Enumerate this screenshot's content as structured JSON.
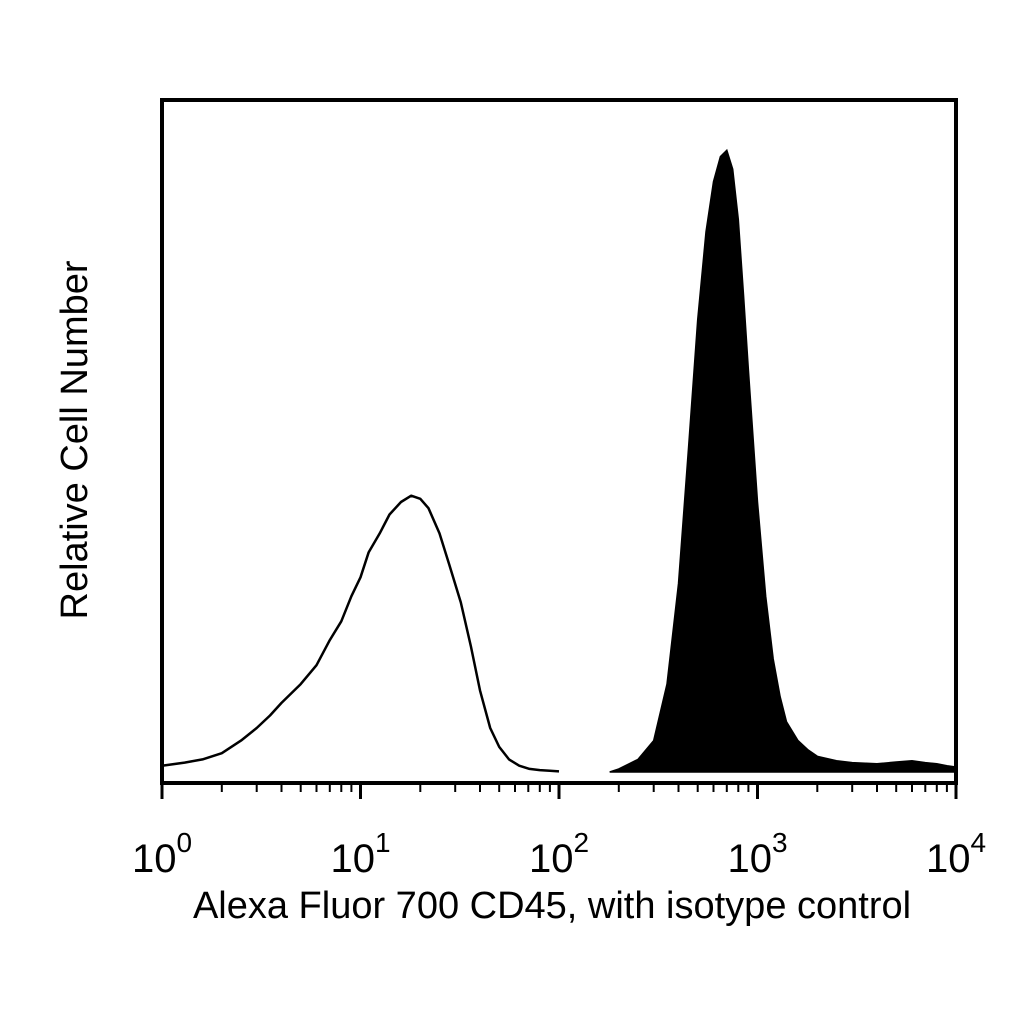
{
  "chart_data": {
    "type": "area",
    "title": "",
    "xlabel": "Alexa Fluor 700 CD45, with isotype control",
    "ylabel": "Relative Cell Number",
    "xscale": "log",
    "xlim": [
      1,
      10000
    ],
    "ylim": [
      0,
      100
    ],
    "grid": false,
    "legend": "none",
    "x_ticks": [
      {
        "value": 1,
        "base": "10",
        "exp": "0"
      },
      {
        "value": 10,
        "base": "10",
        "exp": "1"
      },
      {
        "value": 100,
        "base": "10",
        "exp": "2"
      },
      {
        "value": 1000,
        "base": "10",
        "exp": "3"
      },
      {
        "value": 10000,
        "base": "10",
        "exp": "4"
      }
    ],
    "series": [
      {
        "style": "outline",
        "color": "#000000",
        "x": [
          1.0,
          1.3,
          1.6,
          2.0,
          2.5,
          3.0,
          3.5,
          4.0,
          5.0,
          6.0,
          7.0,
          8.0,
          9.0,
          10.0,
          11.0,
          12.5,
          14.0,
          16.0,
          18.0,
          20.0,
          22.0,
          25.0,
          28.0,
          32.0,
          36.0,
          40.0,
          45.0,
          50.0,
          56.0,
          63.0,
          71.0,
          80.0,
          90.0,
          100.0
        ],
        "y": [
          1,
          1.5,
          2,
          3,
          5,
          7,
          9,
          11,
          14,
          17,
          21,
          24,
          28,
          31,
          35,
          38,
          41,
          43,
          44,
          43.5,
          42,
          38,
          33,
          27,
          20,
          13,
          7,
          4,
          2,
          1,
          0.5,
          0.3,
          0.2,
          0.1
        ]
      },
      {
        "style": "filled",
        "color": "#000000",
        "x": [
          180,
          200,
          250,
          300,
          350,
          400,
          450,
          500,
          550,
          600,
          650,
          700,
          750,
          800,
          850,
          900,
          1000,
          1100,
          1200,
          1300,
          1400,
          1600,
          1800,
          2000,
          2500,
          3000,
          4000,
          5000,
          6000,
          7000,
          8000,
          9000,
          10000
        ],
        "y": [
          0,
          0.5,
          2,
          5,
          14,
          30,
          52,
          72,
          86,
          94,
          98,
          99,
          96,
          88,
          76,
          64,
          43,
          28,
          18,
          12,
          8,
          5,
          3.5,
          2.5,
          1.8,
          1.5,
          1.3,
          1.6,
          1.8,
          1.5,
          1.3,
          1.0,
          0.8
        ]
      }
    ]
  }
}
